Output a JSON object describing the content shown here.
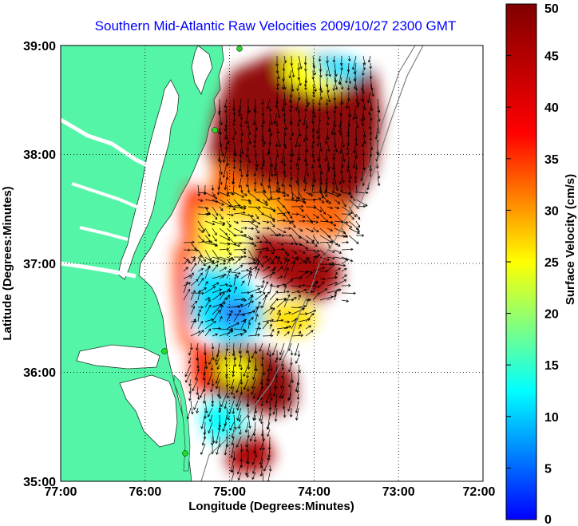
{
  "title": "Southern Mid-Atlantic Raw Velocities 2009/10/27 2300 GMT",
  "x_axis": {
    "label": "Longitude (Degrees:Minutes)",
    "ticks": [
      "77:00",
      "76:00",
      "75:00",
      "74:00",
      "73:00",
      "72:00"
    ]
  },
  "y_axis": {
    "label": "Latitude (Degrees:Minutes)",
    "ticks": [
      "39:00",
      "38:00",
      "37:00",
      "36:00",
      "35:00"
    ]
  },
  "colorbar": {
    "label": "Surface Velocity (cm/s)",
    "ticks": [
      "50",
      "45",
      "40",
      "35",
      "30",
      "25",
      "20",
      "15",
      "10",
      "5",
      "0"
    ],
    "range": [
      0,
      50
    ],
    "colormap": "jet"
  },
  "colors": {
    "land": "#55f5a8",
    "water": "#ffffff",
    "title": "#0000ff",
    "station": "#22dd22"
  },
  "grid": "dotted"
}
